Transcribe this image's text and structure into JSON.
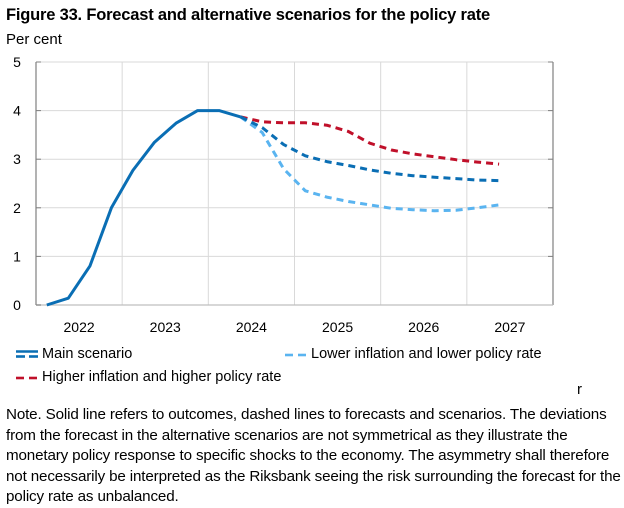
{
  "figure": {
    "title": "Figure 33. Forecast and alternative scenarios for the policy rate",
    "unit_label": "Per cent",
    "stray_text": "r",
    "note": "Note. Solid line refers to outcomes, dashed lines to forecasts and scenarios. The deviations from the forecast in the alternative scenarios are not symmetrical as they illustrate the monetary policy response to specific shocks to the economy. The asymmetry shall therefore not necessarily be interpreted as the Riksbank seeing the risk surrounding the forecast for the policy rate as unbalanced."
  },
  "colors": {
    "main": "#0A6EB4",
    "lower": "#5AB4F0",
    "higher": "#C0102A",
    "grid": "#D9D9D9",
    "axis": "#808080"
  },
  "legend": [
    {
      "key": "main",
      "label": "Main scenario"
    },
    {
      "key": "lower",
      "label": "Lower inflation and lower policy rate"
    },
    {
      "key": "higher",
      "label": "Higher inflation and higher policy rate"
    }
  ],
  "chart_data": {
    "type": "line",
    "title": "Figure 33. Forecast and alternative scenarios for the policy rate",
    "xlabel": "",
    "ylabel": "Per cent",
    "frequency": "quarterly",
    "x_tick_labels": [
      "2022",
      "2023",
      "2024",
      "2025",
      "2026",
      "2027"
    ],
    "x_range": [
      "2022Q1",
      "2027Q4"
    ],
    "ylim": [
      0,
      5
    ],
    "y_ticks": [
      0,
      1,
      2,
      3,
      4,
      5
    ],
    "grid": true,
    "legend_position": "bottom",
    "series": [
      {
        "name": "Outcome",
        "key": "outcome",
        "style": "solid",
        "color_key": "main",
        "x": [
          "2022Q1",
          "2022Q2",
          "2022Q3",
          "2022Q4",
          "2023Q1",
          "2023Q2",
          "2023Q3",
          "2023Q4",
          "2024Q1",
          "2024Q2"
        ],
        "values": [
          0.0,
          0.14,
          0.8,
          2.0,
          2.77,
          3.35,
          3.74,
          4.0,
          4.0,
          3.87
        ]
      },
      {
        "name": "Main scenario",
        "key": "main",
        "style": "dashed",
        "color_key": "main",
        "x": [
          "2024Q2",
          "2024Q3",
          "2024Q4",
          "2025Q1",
          "2025Q2",
          "2025Q3",
          "2025Q4",
          "2026Q1",
          "2026Q2",
          "2026Q3",
          "2026Q4",
          "2027Q1",
          "2027Q2"
        ],
        "values": [
          3.87,
          3.65,
          3.3,
          3.07,
          2.95,
          2.87,
          2.78,
          2.71,
          2.66,
          2.63,
          2.6,
          2.57,
          2.56
        ]
      },
      {
        "name": "Lower inflation and lower policy rate",
        "key": "lower",
        "style": "dashed",
        "color_key": "lower",
        "x": [
          "2024Q2",
          "2024Q3",
          "2024Q4",
          "2025Q1",
          "2025Q2",
          "2025Q3",
          "2025Q4",
          "2026Q1",
          "2026Q2",
          "2026Q3",
          "2026Q4",
          "2027Q1",
          "2027Q2"
        ],
        "values": [
          3.87,
          3.55,
          2.8,
          2.35,
          2.22,
          2.13,
          2.06,
          1.99,
          1.96,
          1.94,
          1.95,
          2.0,
          2.06
        ]
      },
      {
        "name": "Higher inflation and higher policy rate",
        "key": "higher",
        "style": "dashed",
        "color_key": "higher",
        "x": [
          "2024Q2",
          "2024Q3",
          "2024Q4",
          "2025Q1",
          "2025Q2",
          "2025Q3",
          "2025Q4",
          "2026Q1",
          "2026Q2",
          "2026Q3",
          "2026Q4",
          "2027Q1",
          "2027Q2"
        ],
        "values": [
          3.87,
          3.77,
          3.75,
          3.75,
          3.7,
          3.57,
          3.33,
          3.19,
          3.11,
          3.05,
          2.99,
          2.94,
          2.9
        ]
      }
    ]
  }
}
